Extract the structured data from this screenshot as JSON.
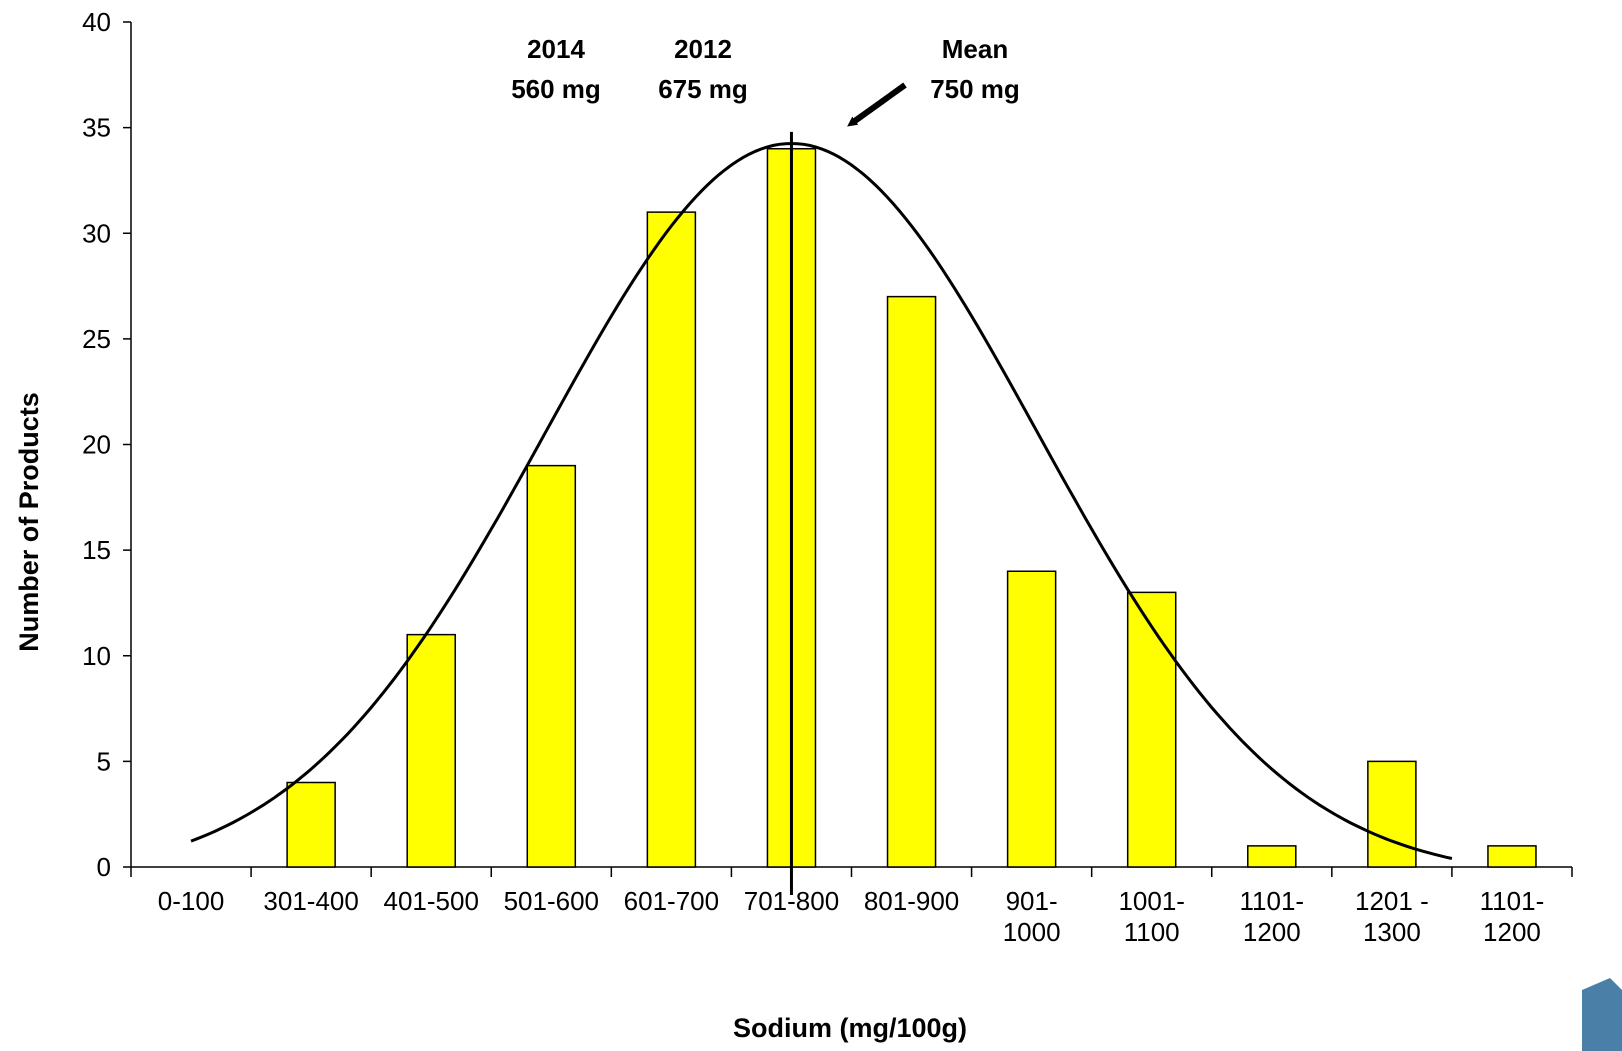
{
  "chart_data": {
    "type": "bar",
    "xlabel": "Sodium (mg/100g)",
    "ylabel": "Number of Products",
    "ylim": [
      0,
      40
    ],
    "yticks": [
      "0",
      "5",
      "10",
      "15",
      "20",
      "25",
      "30",
      "35",
      "40"
    ],
    "categories": [
      [
        "0-100"
      ],
      [
        "301-400"
      ],
      [
        "401-500"
      ],
      [
        "501-600"
      ],
      [
        "601-700"
      ],
      [
        "701-800"
      ],
      [
        "801-900"
      ],
      [
        "901-",
        "1000"
      ],
      [
        "1001-",
        "1100"
      ],
      [
        "1101-",
        "1200"
      ],
      [
        "1201 -",
        "1300"
      ],
      [
        "1101-",
        "1200"
      ]
    ],
    "values": [
      0,
      4,
      11,
      19,
      31,
      34,
      27,
      14,
      13,
      1,
      5,
      1
    ],
    "bar_color": "#ffff00",
    "bar_outline": "#000000",
    "fitted_curve": {
      "type": "normal-curve",
      "peak": 34.8,
      "center_category_position": 5.5,
      "color": "#000000"
    },
    "mean_line": {
      "category_position": 5.5
    },
    "annotations": [
      {
        "lines": [
          "2014",
          "560 mg"
        ]
      },
      {
        "lines": [
          "2012",
          "675 mg"
        ]
      },
      {
        "lines": [
          "Mean",
          "750 mg"
        ],
        "arrow": true
      }
    ],
    "grid": false,
    "legend": "none"
  },
  "page_corner_icon": {
    "name": "page-corner-icon",
    "color": "#4a7fa8"
  }
}
